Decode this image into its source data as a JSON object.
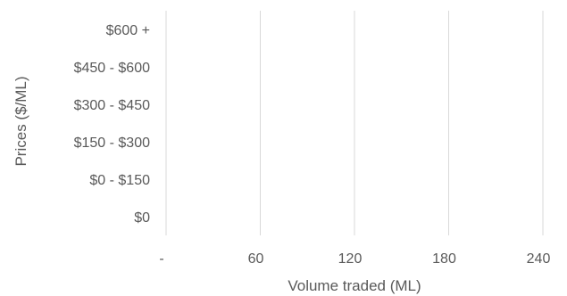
{
  "chart_data": {
    "type": "bar",
    "orientation": "horizontal",
    "categories": [
      "$0",
      "$0 - $150",
      "$150 - $300",
      "$300 - $450",
      "$450 - $600",
      "$600 +"
    ],
    "values": [
      0,
      0,
      0,
      0,
      0,
      0
    ],
    "xlabel": "Volume traded (ML)",
    "ylabel": "Prices ($/ML)",
    "xlim": [
      0,
      240
    ],
    "x_ticks": [
      "-",
      "60",
      "120",
      "180",
      "240"
    ],
    "grid": true,
    "colors": {
      "grid": "#d9d9d9",
      "text": "#595959",
      "bar": "#4472c4"
    }
  }
}
